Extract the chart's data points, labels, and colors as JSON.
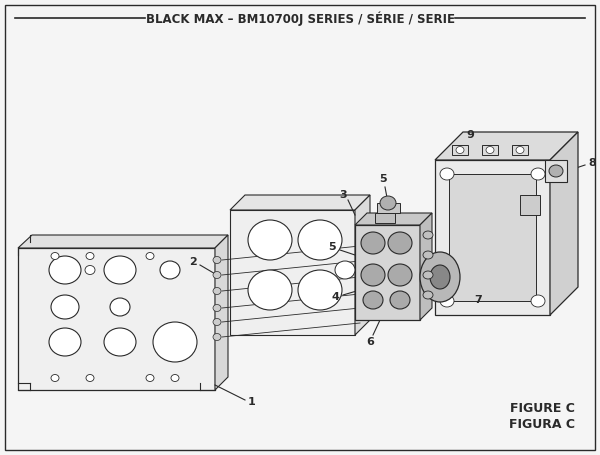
{
  "title": "BLACK MAX – BM10700J SERIES / SÉRIE / SERIE",
  "figure_label": "FIGURE C",
  "figura_label": "FIGURA C",
  "bg_color": "#f5f5f5",
  "line_color": "#2a2a2a",
  "title_fontsize": 8.5,
  "figsize": [
    6.0,
    4.55
  ]
}
